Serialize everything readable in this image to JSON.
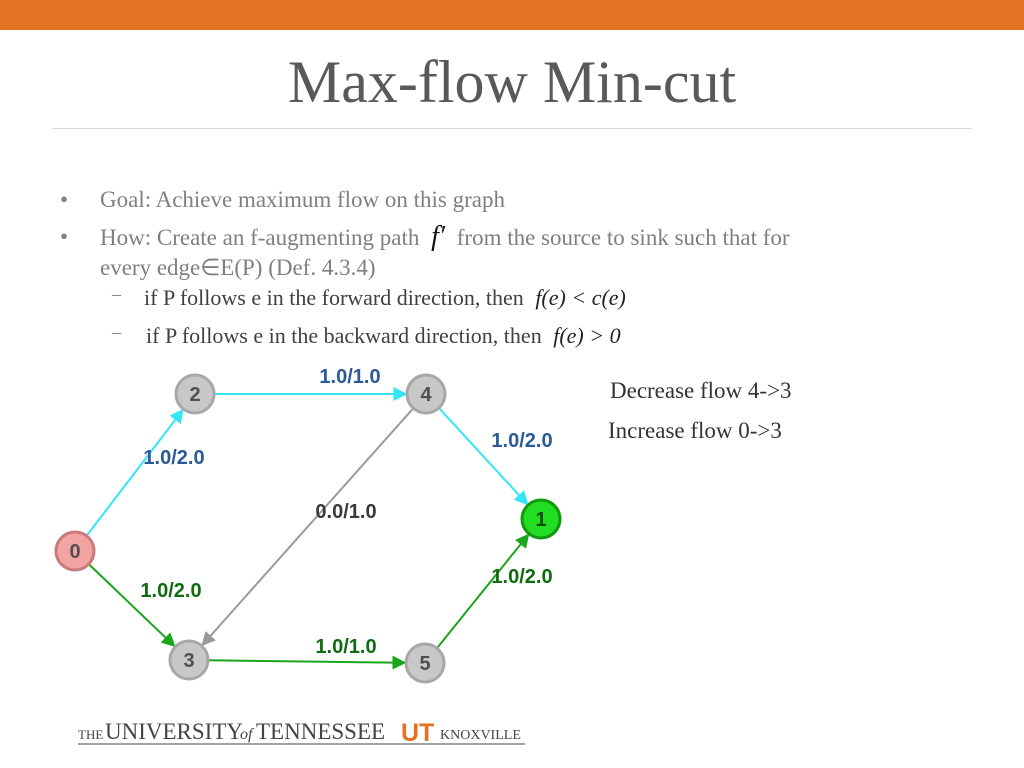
{
  "colors": {
    "accent_bar": "#e37222",
    "forward_edge": "#33e6f5",
    "green_edge": "#1aa51a",
    "gray_edge": "#9a9a9a",
    "node_fill": "#c8c8c8",
    "source_fill": "#f4a3a3",
    "sink_fill": "#22dd22",
    "edge_label": "#2b5a98",
    "green_label": "#0f6b0f"
  },
  "title": "Max-flow Min-cut",
  "bullets": {
    "goal": "Goal: Achieve maximum flow on this graph",
    "how_part1": "How: Create an f-augmenting path",
    "how_math": "f′",
    "how_part2": "from the source to sink such that for",
    "how_line2": "every edge∈E(P) (Def. 4.3.4)",
    "bullet_symbol": "•"
  },
  "sub_bullets": {
    "dash": "–",
    "forward_text": "if P follows e in the forward direction, then",
    "forward_math": "f(e) < c(e)",
    "backward_text": "if P follows e in the backward direction, then",
    "backward_math": "f(e) > 0"
  },
  "notes": {
    "line1": "Decrease flow 4->3",
    "line2": "Increase flow 0->3"
  },
  "graph": {
    "nodes": [
      {
        "id": "0",
        "label": "0",
        "kind": "source"
      },
      {
        "id": "1",
        "label": "1",
        "kind": "sink"
      },
      {
        "id": "2",
        "label": "2",
        "kind": "normal"
      },
      {
        "id": "3",
        "label": "3",
        "kind": "normal"
      },
      {
        "id": "4",
        "label": "4",
        "kind": "normal"
      },
      {
        "id": "5",
        "label": "5",
        "kind": "normal"
      }
    ],
    "edges": [
      {
        "from": "0",
        "to": "2",
        "label": "1.0/2.0",
        "style": "cyan"
      },
      {
        "from": "2",
        "to": "4",
        "label": "1.0/1.0",
        "style": "cyan"
      },
      {
        "from": "4",
        "to": "1",
        "label": "1.0/2.0",
        "style": "cyan"
      },
      {
        "from": "4",
        "to": "3",
        "label": "0.0/1.0",
        "style": "gray"
      },
      {
        "from": "0",
        "to": "3",
        "label": "1.0/2.0",
        "style": "green"
      },
      {
        "from": "3",
        "to": "5",
        "label": "1.0/1.0",
        "style": "green"
      },
      {
        "from": "5",
        "to": "1",
        "label": "1.0/2.0",
        "style": "green"
      }
    ]
  },
  "footer": {
    "the": "THE",
    "university": "UNIVERSITY",
    "of": "of",
    "tennessee": "TENNESSEE",
    "logo": "UT",
    "knoxville": "KNOXVILLE"
  }
}
